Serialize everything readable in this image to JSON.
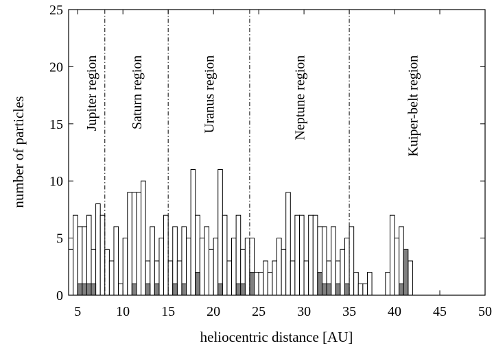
{
  "chart_data": {
    "type": "bar",
    "xlabel": "heliocentric distance [AU]",
    "ylabel": "number of particles",
    "xlim": [
      4,
      50
    ],
    "ylim": [
      0,
      25
    ],
    "xticks": [
      5,
      10,
      15,
      20,
      25,
      30,
      35,
      40,
      45,
      50
    ],
    "yticks": [
      0,
      5,
      10,
      15,
      20,
      25
    ],
    "bin_width": 0.5,
    "grid": false,
    "legend": "none",
    "series": [
      {
        "style": "open",
        "color": "#ffffff",
        "edge_color": "#000000",
        "x": [
          4.0,
          4.5,
          5.0,
          5.5,
          6.0,
          6.5,
          7.0,
          7.5,
          8.0,
          8.5,
          9.0,
          9.5,
          10.0,
          10.5,
          11.0,
          11.5,
          12.0,
          12.5,
          13.0,
          13.5,
          14.0,
          14.5,
          15.0,
          15.5,
          16.0,
          16.5,
          17.0,
          17.5,
          18.0,
          18.5,
          19.0,
          19.5,
          20.0,
          20.5,
          21.0,
          21.5,
          22.0,
          22.5,
          23.0,
          23.5,
          24.0,
          24.5,
          25.0,
          25.5,
          26.0,
          26.5,
          27.0,
          27.5,
          28.0,
          28.5,
          29.0,
          29.5,
          30.0,
          30.5,
          31.0,
          31.5,
          32.0,
          32.5,
          33.0,
          33.5,
          34.0,
          34.5,
          35.0,
          35.5,
          36.0,
          36.5,
          37.0,
          37.5,
          38.0,
          38.5,
          39.0,
          39.5,
          40.0,
          40.5,
          41.0,
          41.5,
          42.0,
          42.5
        ],
        "values": [
          4,
          7,
          6,
          6,
          7,
          4,
          8,
          7,
          4,
          3,
          6,
          1,
          5,
          9,
          9,
          9,
          10,
          3,
          6,
          3,
          5,
          7,
          3,
          6,
          3,
          6,
          5,
          11,
          7,
          5,
          6,
          4,
          5,
          11,
          7,
          3,
          5,
          7,
          4,
          5,
          5,
          2,
          2,
          3,
          2,
          3,
          5,
          4,
          9,
          3,
          7,
          7,
          3,
          7,
          7,
          6,
          6,
          3,
          6,
          3,
          4,
          5,
          6,
          2,
          1,
          1,
          2,
          0,
          0,
          0,
          2,
          7,
          5,
          6,
          3,
          3,
          0,
          0
        ],
        "y_unit": "particles"
      },
      {
        "style": "filled",
        "color": "#808080",
        "edge_color": "#000000",
        "x": [
          5.0,
          5.5,
          6.0,
          6.5,
          11.0,
          12.5,
          13.5,
          15.5,
          16.5,
          18.0,
          20.5,
          22.5,
          23.0,
          24.0,
          31.5,
          32.0,
          32.5,
          33.5,
          34.5,
          40.5,
          41.0
        ],
        "values": [
          1,
          1,
          1,
          1,
          1,
          1,
          1,
          1,
          1,
          2,
          1,
          1,
          1,
          2,
          2,
          1,
          1,
          1,
          1,
          1,
          4
        ]
      }
    ],
    "dividers": [
      8,
      15,
      24,
      35
    ],
    "regions": [
      {
        "label": "Jupiter region",
        "x": 6.5
      },
      {
        "label": "Saturn region",
        "x": 11.5
      },
      {
        "label": "Uranus region",
        "x": 19.5
      },
      {
        "label": "Neptune region",
        "x": 29.5
      },
      {
        "label": "Kuiper-belt region",
        "x": 42.0
      }
    ],
    "region_label_y": 21
  }
}
